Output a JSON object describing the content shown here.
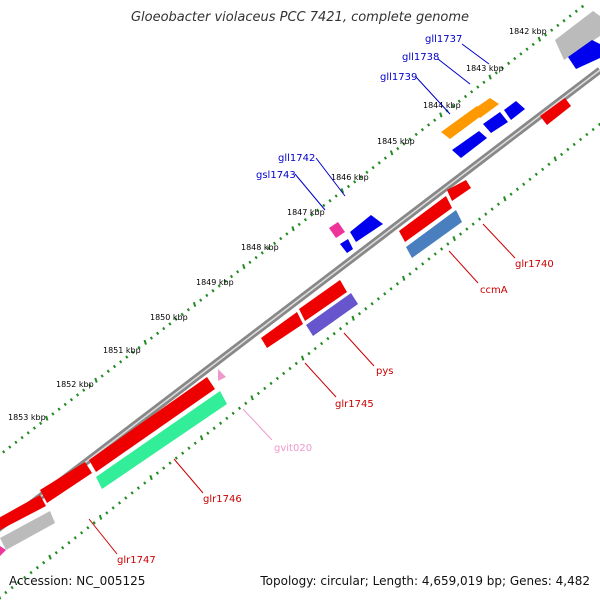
{
  "title": "Gloeobacter violaceus PCC 7421, complete genome",
  "accession": "Accession: NC_005125",
  "topology": "Topology: circular; Length: 4,659,019 bp; Genes: 4,482",
  "kbp_labels": [
    "1842 kbp",
    "1843 kbp",
    "1844 kbp",
    "1845 kbp",
    "1846 kbp",
    "1847 kbp",
    "1848 kbp",
    "1849 kbp",
    "1850 kbp",
    "1851 kbp",
    "1852 kbp",
    "1853 kbp"
  ],
  "genes": [
    {
      "name": "gll1737",
      "color": "#0000cc",
      "strand": "minus"
    },
    {
      "name": "gll1738",
      "color": "#0000cc",
      "strand": "minus"
    },
    {
      "name": "gll1739",
      "color": "#0000cc",
      "strand": "minus"
    },
    {
      "name": "gll1742",
      "color": "#0000cc",
      "strand": "minus"
    },
    {
      "name": "gsl1743",
      "color": "#0000cc",
      "strand": "minus"
    },
    {
      "name": "glr1740",
      "color": "#cc0000",
      "strand": "plus"
    },
    {
      "name": "ccmA",
      "color": "#cc0000",
      "strand": "plus"
    },
    {
      "name": "pys",
      "color": "#cc0000",
      "strand": "plus"
    },
    {
      "name": "glr1745",
      "color": "#cc0000",
      "strand": "plus"
    },
    {
      "name": "gvit020",
      "color": "#ee99cc",
      "strand": "plus"
    },
    {
      "name": "glr1746",
      "color": "#cc0000",
      "strand": "plus"
    },
    {
      "name": "glr1747",
      "color": "#cc0000",
      "strand": "plus"
    }
  ],
  "colors": {
    "backbone": "#7f7f7f",
    "tick": "#228b22",
    "minus_gene": "#0000ee",
    "plus_gene": "#ee0000",
    "orange_gene": "#ff9900",
    "steelblue_gene": "#4a7fbf",
    "slate_gene": "#6655cc",
    "green_gene": "#33ee99",
    "grey_gene": "#bbbbbb",
    "pink_gene": "#ee3399"
  }
}
